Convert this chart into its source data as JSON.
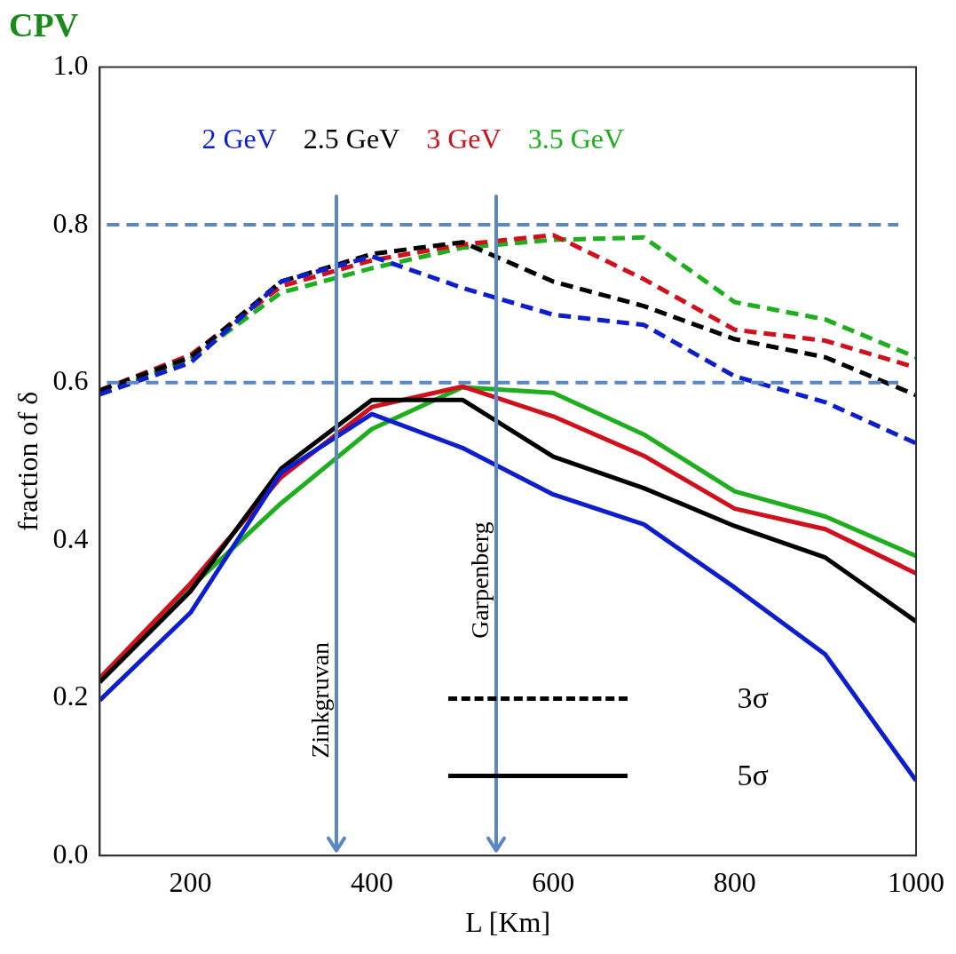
{
  "chart_data": {
    "type": "line",
    "title": "CPV",
    "xlabel": "L [Km]",
    "ylabel": "fraction of δ",
    "x": [
      100,
      200,
      300,
      400,
      500,
      600,
      700,
      800,
      900,
      1000
    ],
    "xlim": [
      100,
      1000
    ],
    "xticks": [
      200,
      400,
      600,
      800,
      1000
    ],
    "ylim": [
      0,
      1
    ],
    "yticks": [
      {
        "value": 0,
        "label": "0.0"
      },
      {
        "value": 0.2,
        "label": "0.2"
      },
      {
        "value": 0.4,
        "label": "0.4"
      },
      {
        "value": 0.6,
        "label": "0.6"
      },
      {
        "value": 0.8,
        "label": "0.8"
      },
      {
        "value": 1,
        "label": "1.0"
      }
    ],
    "legend": "top",
    "grid": false,
    "series": [
      {
        "name": "2 GeV",
        "color": "#0f1ecc",
        "line_style": "dashed",
        "values": [
          0.585,
          0.625,
          0.728,
          0.76,
          0.72,
          0.686,
          0.673,
          0.608,
          0.575,
          0.523
        ]
      },
      {
        "name": "2.5 GeV",
        "color": "#000000",
        "line_style": "dashed",
        "values": [
          0.59,
          0.632,
          0.728,
          0.763,
          0.778,
          0.728,
          0.697,
          0.655,
          0.632,
          0.584
        ]
      },
      {
        "name": "3 GeV",
        "color": "#d0101c",
        "line_style": "dashed",
        "values": [
          0.59,
          0.635,
          0.722,
          0.755,
          0.775,
          0.787,
          0.731,
          0.667,
          0.653,
          0.619
        ]
      },
      {
        "name": "3.5 GeV",
        "color": "#1eae1e",
        "line_style": "dashed",
        "values": [
          0.585,
          0.63,
          0.714,
          0.745,
          0.771,
          0.781,
          0.784,
          0.702,
          0.68,
          0.632
        ]
      },
      {
        "color": "#0f1ecc",
        "line_style": "solid",
        "values": [
          0.197,
          0.308,
          0.486,
          0.56,
          0.517,
          0.458,
          0.42,
          0.34,
          0.255,
          0.095
        ]
      },
      {
        "color": "#000000",
        "line_style": "solid",
        "values": [
          0.22,
          0.335,
          0.491,
          0.578,
          0.578,
          0.506,
          0.466,
          0.418,
          0.378,
          0.297
        ]
      },
      {
        "color": "#d0101c",
        "line_style": "solid",
        "values": [
          0.225,
          0.345,
          0.48,
          0.569,
          0.595,
          0.557,
          0.507,
          0.44,
          0.414,
          0.358
        ]
      },
      {
        "color": "#1eae1e",
        "line_style": "solid",
        "values": [
          0.225,
          0.34,
          0.447,
          0.541,
          0.594,
          0.587,
          0.534,
          0.462,
          0.43,
          0.38
        ]
      }
    ],
    "ref_lines": [
      {
        "axis": "y",
        "value": 0.8,
        "color": "#5b87c5",
        "line_style": "dashed"
      },
      {
        "axis": "y",
        "value": 0.6,
        "color": "#5b87c5",
        "line_style": "dashed"
      },
      {
        "axis": "x",
        "value": 361,
        "label": "Zinkgruvan",
        "color": "#5b87c5",
        "line_style": "solid"
      },
      {
        "axis": "x",
        "value": 537,
        "label": "Garpenberg",
        "color": "#5b87c5",
        "line_style": "solid"
      }
    ],
    "annotations": [
      "3σ",
      "5σ"
    ]
  }
}
